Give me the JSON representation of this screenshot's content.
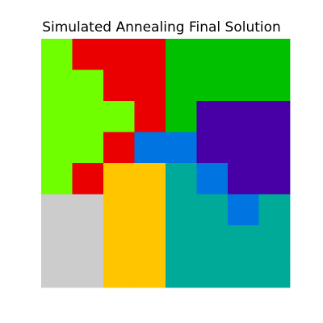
{
  "chart_data": {
    "type": "heatmap",
    "title": "Simulated Annealing Final Solution",
    "xlabel": "",
    "ylabel": "",
    "axes_visible": false,
    "grid": false,
    "rows": 8,
    "cols": 8,
    "colors": {
      "0": "#70ff00",
      "1": "#ea0000",
      "2": "#00c000",
      "3": "#4600a6",
      "4": "#0075e2",
      "5": "#00aa98",
      "6": "#ffc600",
      "7": "#cccccc"
    },
    "grid_values": [
      [
        0,
        1,
        1,
        1,
        2,
        2,
        2,
        2
      ],
      [
        0,
        0,
        1,
        1,
        2,
        2,
        2,
        2
      ],
      [
        0,
        0,
        0,
        1,
        2,
        3,
        3,
        3
      ],
      [
        0,
        0,
        1,
        4,
        4,
        3,
        3,
        3
      ],
      [
        0,
        1,
        6,
        6,
        5,
        4,
        3,
        3
      ],
      [
        7,
        7,
        6,
        6,
        5,
        5,
        4,
        5
      ],
      [
        7,
        7,
        6,
        6,
        5,
        5,
        5,
        5
      ],
      [
        7,
        7,
        6,
        6,
        5,
        5,
        5,
        5
      ]
    ]
  }
}
